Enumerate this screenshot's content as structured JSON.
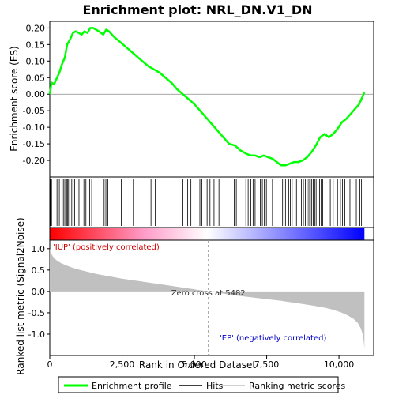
{
  "chart_data": {
    "type": "line",
    "title": "Enrichment plot: NRL_DN.V1_DN",
    "top_panel": {
      "ylabel": "Enrichment score (ES)",
      "ylim": [
        -0.25,
        0.22
      ],
      "yticks": [
        -0.2,
        -0.15,
        -0.1,
        -0.05,
        0.0,
        0.05,
        0.1,
        0.15,
        0.2
      ],
      "ytick_labels": [
        "-0.20",
        "-0.15",
        "-0.10",
        "-0.05",
        "0.00",
        "0.05",
        "0.10",
        "0.15",
        "0.20"
      ],
      "es_curve": {
        "name": "Enrichment profile",
        "x": [
          0,
          60,
          150,
          250,
          330,
          420,
          520,
          600,
          700,
          800,
          900,
          1000,
          1100,
          1200,
          1300,
          1400,
          1500,
          1700,
          1850,
          1950,
          2050,
          2200,
          2400,
          2600,
          2800,
          3000,
          3200,
          3400,
          3600,
          3800,
          4000,
          4200,
          4400,
          4600,
          4800,
          5000,
          5200,
          5400,
          5600,
          5800,
          6000,
          6200,
          6400,
          6600,
          6800,
          6950,
          7100,
          7250,
          7400,
          7550,
          7700,
          7850,
          8000,
          8150,
          8300,
          8450,
          8600,
          8750,
          8900,
          9050,
          9200,
          9350,
          9500,
          9650,
          9800,
          9950,
          10100,
          10250,
          10400,
          10550,
          10700,
          10800,
          10880
        ],
        "y": [
          0.0,
          0.035,
          0.03,
          0.05,
          0.065,
          0.09,
          0.11,
          0.15,
          0.165,
          0.185,
          0.19,
          0.185,
          0.18,
          0.19,
          0.185,
          0.2,
          0.2,
          0.19,
          0.18,
          0.195,
          0.19,
          0.175,
          0.16,
          0.145,
          0.13,
          0.115,
          0.1,
          0.085,
          0.075,
          0.065,
          0.05,
          0.035,
          0.015,
          0.0,
          -0.015,
          -0.03,
          -0.05,
          -0.07,
          -0.09,
          -0.11,
          -0.13,
          -0.15,
          -0.155,
          -0.17,
          -0.18,
          -0.185,
          -0.185,
          -0.19,
          -0.185,
          -0.19,
          -0.195,
          -0.205,
          -0.215,
          -0.215,
          -0.21,
          -0.205,
          -0.205,
          -0.2,
          -0.19,
          -0.175,
          -0.155,
          -0.13,
          -0.12,
          -0.13,
          -0.12,
          -0.105,
          -0.085,
          -0.075,
          -0.06,
          -0.045,
          -0.03,
          -0.01,
          0.005
        ]
      }
    },
    "hits": {
      "name": "Hits",
      "x": [
        20,
        60,
        250,
        330,
        420,
        470,
        520,
        580,
        610,
        650,
        700,
        760,
        810,
        860,
        940,
        1010,
        1080,
        1180,
        1250,
        1380,
        1450,
        1880,
        1940,
        2010,
        2470,
        2890,
        3500,
        3650,
        3810,
        3950,
        4600,
        4770,
        4880,
        5190,
        5260,
        5440,
        5540,
        5680,
        5850,
        6380,
        6450,
        6780,
        6860,
        6950,
        7030,
        7100,
        7280,
        7350,
        7420,
        7490,
        7700,
        8050,
        8150,
        8260,
        8320,
        8380,
        8530,
        8620,
        8700,
        8770,
        8840,
        8900,
        8960,
        9010,
        9060,
        9110,
        9160,
        9210,
        9330,
        9380,
        9440,
        9700,
        9800,
        9950,
        10050,
        10120,
        10200,
        10380,
        10450,
        10600,
        10720,
        10780,
        10830
      ]
    },
    "ranking_bar": {
      "x_min": 0,
      "x_max": 10880,
      "colors_start": "#ff0000",
      "colors_mid": "#ffffff",
      "colors_end": "#0000ff"
    },
    "bottom_panel": {
      "ylabel": "Ranked list metric (Signal2Noise)",
      "xlabel": "Rank in Ordered Dataset",
      "ylim": [
        -1.5,
        1.2
      ],
      "yticks": [
        -1.0,
        -0.5,
        0.0,
        0.5,
        1.0
      ],
      "ytick_labels": [
        "-1.0",
        "-0.5",
        "0.0",
        "0.5",
        "1.0"
      ],
      "metric_curve": {
        "name": "Ranking metric scores",
        "x": [
          0,
          30,
          80,
          150,
          250,
          400,
          600,
          800,
          1000,
          1300,
          1600,
          2000,
          2500,
          3000,
          3500,
          4000,
          4500,
          5000,
          5482,
          6000,
          6500,
          7000,
          7500,
          8000,
          8500,
          9000,
          9500,
          9800,
          10100,
          10300,
          10500,
          10650,
          10750,
          10820,
          10860,
          10880
        ],
        "y": [
          1.0,
          0.92,
          0.85,
          0.78,
          0.72,
          0.66,
          0.6,
          0.55,
          0.51,
          0.46,
          0.41,
          0.36,
          0.3,
          0.25,
          0.2,
          0.15,
          0.1,
          0.05,
          0.0,
          -0.05,
          -0.1,
          -0.14,
          -0.18,
          -0.22,
          -0.27,
          -0.32,
          -0.38,
          -0.43,
          -0.5,
          -0.56,
          -0.64,
          -0.74,
          -0.86,
          -1.0,
          -1.2,
          -1.35
        ]
      },
      "zero_cross_label": "Zero cross at 5482",
      "zero_cross_x": 5482,
      "pos_label": "'IUP' (positively correlated)",
      "neg_label": "'EP' (negatively correlated)"
    },
    "xlim": [
      0,
      11200
    ],
    "xticks": [
      0,
      2500,
      5000,
      7500,
      10000
    ],
    "xtick_labels": [
      "0",
      "2,500",
      "5,000",
      "7,500",
      "10,000"
    ],
    "legend": {
      "placement": "bottom",
      "entries": [
        {
          "label": "Enrichment profile",
          "color": "#00ff00"
        },
        {
          "label": "Hits",
          "color": "#000000"
        },
        {
          "label": "Ranking metric scores",
          "color": "#c0c0c0"
        }
      ]
    },
    "colors": {
      "es_line": "#00ff00",
      "metric_fill": "#c0c0c0",
      "pos_text": "#cc0000",
      "neg_text": "#0000cc"
    }
  }
}
